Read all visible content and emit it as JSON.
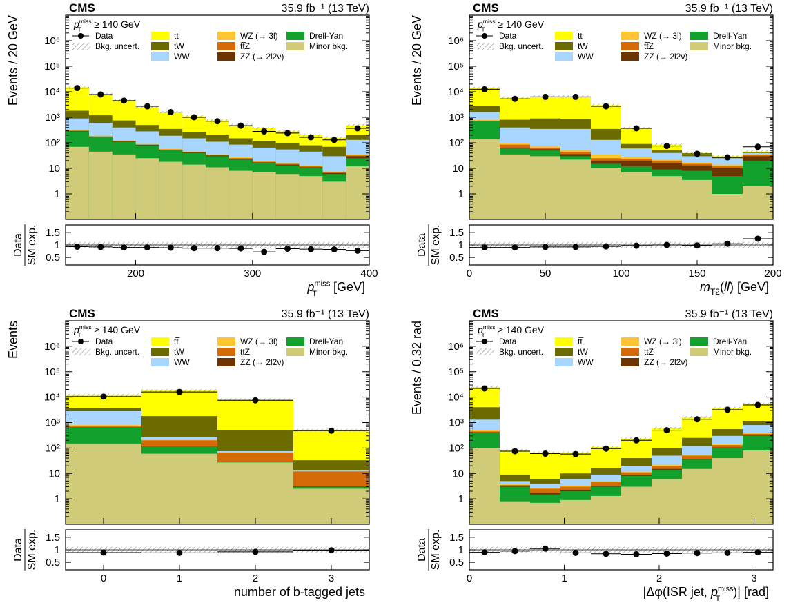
{
  "colors": {
    "ttbar": "#ffff00",
    "tW": "#6b6b00",
    "WW": "#a8d6ff",
    "WZ": "#ffc532",
    "ttZ": "#d56a08",
    "ZZ": "#6b3400",
    "DY": "#12a12c",
    "minor": "#cfcb79",
    "data": "#000000"
  },
  "chart_data": [
    {
      "type": "bar",
      "stacked": true,
      "scale_y": "log",
      "experiment": "CMS",
      "lumi": "35.9 fb⁻¹ (13 TeV)",
      "selection": "p_T^miss ≥ 140 GeV",
      "ylabel": "Events / 20 GeV",
      "xlabel": "p_T^miss [GeV]",
      "ratio_ylabel": "Data / SM exp.",
      "xlim": [
        140,
        400
      ],
      "ylim": [
        0.1,
        10000000
      ],
      "ratio_ylim": [
        0.2,
        1.8
      ],
      "x_ticks": [
        "200",
        "300",
        "400"
      ],
      "x_tick_values": [
        200,
        300,
        400
      ],
      "y_ticks": [
        "1",
        "10",
        "10²",
        "10³",
        "10⁴",
        "10⁵",
        "10⁶"
      ],
      "ratio_ticks": [
        "0.5",
        "1",
        "1.5"
      ],
      "bin_edges": [
        140,
        160,
        180,
        200,
        220,
        240,
        260,
        280,
        300,
        320,
        340,
        360,
        380,
        400
      ],
      "legend": [
        {
          "key": "data",
          "label": "Data",
          "kind": "marker"
        },
        {
          "key": "ttbar",
          "label": "tt̅",
          "kind": "box"
        },
        {
          "key": "WZ",
          "label": "WZ (→ 3l)",
          "kind": "box"
        },
        {
          "key": "DY",
          "label": "Drell-Yan",
          "kind": "box"
        },
        {
          "key": "unc",
          "label": "Bkg. uncert.",
          "kind": "hatch"
        },
        {
          "key": "tW",
          "label": "tW",
          "kind": "box"
        },
        {
          "key": "ttZ",
          "label": "tt̅Z",
          "kind": "box"
        },
        {
          "key": "minor",
          "label": "Minor bkg.",
          "kind": "box"
        },
        {
          "key": "WW",
          "label": "WW",
          "kind": "box"
        },
        {
          "key": "ZZ",
          "label": "ZZ (→ 2l2ν)",
          "kind": "box"
        }
      ],
      "stack_tops": {
        "minor": [
          70,
          45,
          35,
          25,
          18,
          14,
          11,
          8,
          7,
          6,
          5,
          3,
          12
        ],
        "DY": [
          280,
          170,
          110,
          80,
          50,
          40,
          30,
          22,
          16,
          13,
          10,
          6,
          25
        ],
        "ZZ": [
          290,
          175,
          115,
          83,
          53,
          42,
          32,
          24,
          17,
          14,
          11,
          6.5,
          30
        ],
        "ttZ": [
          300,
          180,
          118,
          86,
          55,
          44,
          33,
          25,
          18,
          15,
          12,
          7,
          32
        ],
        "WZ": [
          320,
          190,
          125,
          90,
          58,
          46,
          35,
          27,
          19,
          16,
          13,
          7.5,
          35
        ],
        "WW": [
          900,
          600,
          400,
          280,
          190,
          150,
          110,
          85,
          65,
          55,
          45,
          30,
          130
        ],
        "tW": [
          1800,
          1200,
          750,
          500,
          350,
          260,
          200,
          150,
          120,
          95,
          80,
          70,
          200
        ],
        "ttbar": [
          15000,
          8000,
          4500,
          2500,
          1600,
          1100,
          750,
          500,
          370,
          280,
          200,
          160,
          480
        ]
      },
      "data_points": [
        14000,
        7800,
        4500,
        2700,
        1600,
        1000,
        700,
        470,
        280,
        240,
        165,
        130,
        370
      ],
      "ratio_points": [
        0.93,
        0.92,
        0.9,
        0.9,
        0.89,
        0.87,
        0.87,
        0.86,
        0.72,
        0.85,
        0.83,
        0.82,
        0.77
      ]
    },
    {
      "type": "bar",
      "stacked": true,
      "scale_y": "log",
      "experiment": "CMS",
      "lumi": "35.9 fb⁻¹ (13 TeV)",
      "selection": "p_T^miss ≥ 140 GeV",
      "ylabel": "Events / 20 GeV",
      "xlabel": "m_T2(ll) [GeV]",
      "ratio_ylabel": "Data / SM exp.",
      "xlim": [
        0,
        200
      ],
      "ylim": [
        0.1,
        10000000
      ],
      "ratio_ylim": [
        0.2,
        1.8
      ],
      "x_ticks": [
        "0",
        "50",
        "100",
        "150",
        "200"
      ],
      "x_tick_values": [
        0,
        50,
        100,
        150,
        200
      ],
      "y_ticks": [
        "1",
        "10",
        "10²",
        "10³",
        "10⁴",
        "10⁵",
        "10⁶"
      ],
      "ratio_ticks": [
        "0.5",
        "1",
        "1.5"
      ],
      "bin_edges": [
        0,
        20,
        40,
        60,
        80,
        100,
        120,
        140,
        160,
        180,
        200
      ],
      "legend": [
        {
          "key": "data",
          "label": "Data",
          "kind": "marker"
        },
        {
          "key": "ttbar",
          "label": "tt̅",
          "kind": "box"
        },
        {
          "key": "WZ",
          "label": "WZ (→ 3l)",
          "kind": "box"
        },
        {
          "key": "DY",
          "label": "Drell-Yan",
          "kind": "box"
        },
        {
          "key": "unc",
          "label": "Bkg. uncert.",
          "kind": "hatch"
        },
        {
          "key": "tW",
          "label": "tW",
          "kind": "box"
        },
        {
          "key": "ttZ",
          "label": "tt̅Z",
          "kind": "box"
        },
        {
          "key": "minor",
          "label": "Minor bkg.",
          "kind": "box"
        },
        {
          "key": "WW",
          "label": "WW",
          "kind": "box"
        },
        {
          "key": "ZZ",
          "label": "ZZ (→ 2l2ν)",
          "kind": "box"
        }
      ],
      "stack_tops": {
        "minor": [
          140,
          35,
          30,
          22,
          10,
          7,
          5,
          3.5,
          1,
          2
        ],
        "DY": [
          700,
          60,
          50,
          30,
          15,
          12,
          9,
          8,
          5,
          20
        ],
        "ZZ": [
          720,
          65,
          56,
          36,
          20,
          20,
          16,
          13,
          10,
          30
        ],
        "ttZ": [
          740,
          85,
          65,
          45,
          25,
          24,
          20,
          15,
          12,
          34
        ],
        "WZ": [
          800,
          95,
          72,
          50,
          35,
          27,
          22,
          17,
          14,
          36
        ],
        "WW": [
          1600,
          400,
          350,
          350,
          130,
          60,
          40,
          30,
          25,
          40
        ],
        "tW": [
          2800,
          800,
          900,
          850,
          350,
          90,
          50,
          34,
          27,
          42
        ],
        "ttbar": [
          14000,
          5800,
          6700,
          6500,
          3000,
          380,
          85,
          40,
          30,
          45
        ]
      },
      "data_points": [
        12500,
        5300,
        6300,
        6300,
        2700,
        370,
        75,
        37,
        27,
        70
      ],
      "ratio_points": [
        0.9,
        0.9,
        0.92,
        0.92,
        0.94,
        0.97,
        1.0,
        0.98,
        1.05,
        1.25
      ]
    },
    {
      "type": "bar",
      "stacked": true,
      "scale_y": "log",
      "experiment": "CMS",
      "lumi": "35.9 fb⁻¹ (13 TeV)",
      "selection": "p_T^miss ≥ 140 GeV",
      "ylabel": "Events",
      "xlabel": "number of b-tagged jets",
      "ratio_ylabel": "Data / SM exp.",
      "xlim": [
        -0.5,
        3.5
      ],
      "ylim": [
        0.1,
        10000000
      ],
      "ratio_ylim": [
        0.2,
        1.8
      ],
      "x_ticks": [
        "0",
        "1",
        "2",
        "3"
      ],
      "x_tick_values": [
        0,
        1,
        2,
        3
      ],
      "y_ticks": [
        "1",
        "10",
        "10²",
        "10³",
        "10⁴",
        "10⁵",
        "10⁶"
      ],
      "ratio_ticks": [
        "0.5",
        "1",
        "1.5"
      ],
      "bin_edges": [
        -0.5,
        0.5,
        1.5,
        2.5,
        3.5
      ],
      "legend": [
        {
          "key": "data",
          "label": "Data",
          "kind": "marker"
        },
        {
          "key": "ttbar",
          "label": "tt̅",
          "kind": "box"
        },
        {
          "key": "WZ",
          "label": "WZ (→ 3l)",
          "kind": "box"
        },
        {
          "key": "DY",
          "label": "Drell-Yan",
          "kind": "box"
        },
        {
          "key": "unc",
          "label": "Bkg. uncert.",
          "kind": "hatch"
        },
        {
          "key": "tW",
          "label": "tW",
          "kind": "box"
        },
        {
          "key": "ttZ",
          "label": "tt̅Z",
          "kind": "box"
        },
        {
          "key": "minor",
          "label": "Minor bkg.",
          "kind": "box"
        },
        {
          "key": "WW",
          "label": "WW",
          "kind": "box"
        },
        {
          "key": "ZZ",
          "label": "ZZ (→ 2l2ν)",
          "kind": "box"
        }
      ],
      "stack_tops": {
        "minor": [
          150,
          60,
          27,
          2.5
        ],
        "DY": [
          650,
          110,
          28,
          3
        ],
        "ZZ": [
          660,
          112,
          29,
          3.1
        ],
        "ttZ": [
          700,
          200,
          65,
          12
        ],
        "WZ": [
          800,
          210,
          70,
          12.5
        ],
        "WW": [
          2800,
          270,
          75,
          13
        ],
        "tW": [
          3800,
          1800,
          500,
          33
        ],
        "ttbar": [
          12000,
          18000,
          8000,
          500
        ]
      },
      "data_points": [
        10500,
        16000,
        7500,
        480
      ],
      "ratio_points": [
        0.89,
        0.88,
        0.92,
        0.98
      ]
    },
    {
      "type": "bar",
      "stacked": true,
      "scale_y": "log",
      "experiment": "CMS",
      "lumi": "35.9 fb⁻¹ (13 TeV)",
      "selection": "p_T^miss ≥ 140 GeV",
      "ylabel": "Events / 0.32 rad",
      "xlabel": "|Δφ(ISR jet, p_T^miss)| [rad]",
      "ratio_ylabel": "Data / SM exp.",
      "xlim": [
        0,
        3.2
      ],
      "ylim": [
        0.1,
        10000000
      ],
      "ratio_ylim": [
        0.2,
        1.8
      ],
      "x_ticks": [
        "0",
        "1",
        "2",
        "3"
      ],
      "x_tick_values": [
        0,
        1,
        2,
        3
      ],
      "y_ticks": [
        "1",
        "10",
        "10²",
        "10³",
        "10⁴",
        "10⁵",
        "10⁶"
      ],
      "ratio_ticks": [
        "0.5",
        "1",
        "1.5"
      ],
      "bin_edges": [
        0,
        0.32,
        0.64,
        0.96,
        1.28,
        1.6,
        1.92,
        2.24,
        2.56,
        2.88,
        3.2
      ],
      "legend": [
        {
          "key": "data",
          "label": "Data",
          "kind": "marker"
        },
        {
          "key": "ttbar",
          "label": "tt̅",
          "kind": "box"
        },
        {
          "key": "WZ",
          "label": "WZ (→ 3l)",
          "kind": "box"
        },
        {
          "key": "DY",
          "label": "Drell-Yan",
          "kind": "box"
        },
        {
          "key": "unc",
          "label": "Bkg. uncert.",
          "kind": "hatch"
        },
        {
          "key": "tW",
          "label": "tW",
          "kind": "box"
        },
        {
          "key": "ttZ",
          "label": "tt̅Z",
          "kind": "box"
        },
        {
          "key": "minor",
          "label": "Minor bkg.",
          "kind": "box"
        },
        {
          "key": "WW",
          "label": "WW",
          "kind": "box"
        },
        {
          "key": "ZZ",
          "label": "ZZ (→ 2l2ν)",
          "kind": "box"
        }
      ],
      "stack_tops": {
        "minor": [
          100,
          0.8,
          0.7,
          0.9,
          1.3,
          3,
          6,
          15,
          40,
          80
        ],
        "DY": [
          400,
          3,
          1.5,
          2,
          3,
          8,
          14,
          35,
          100,
          300
        ],
        "ZZ": [
          410,
          3.2,
          1.7,
          2.2,
          3.3,
          8.6,
          15,
          37,
          105,
          310
        ],
        "ttZ": [
          450,
          3.5,
          2.5,
          3,
          4.5,
          11,
          20,
          50,
          130,
          360
        ],
        "WZ": [
          500,
          3.7,
          2.7,
          3.3,
          5,
          12,
          22,
          55,
          140,
          380
        ],
        "WW": [
          1300,
          5,
          4,
          6,
          9,
          20,
          50,
          120,
          300,
          800
        ],
        "tW": [
          4000,
          9,
          6,
          10,
          16,
          40,
          100,
          250,
          550,
          1100
        ],
        "ttbar": [
          25000,
          80,
          65,
          65,
          110,
          230,
          600,
          1600,
          3700,
          5400
        ]
      },
      "data_points": [
        22000,
        75,
        60,
        58,
        95,
        200,
        500,
        1350,
        3200,
        4900
      ],
      "ratio_points": [
        0.9,
        0.95,
        1.05,
        0.88,
        0.84,
        0.82,
        0.85,
        0.87,
        0.88,
        0.9
      ]
    }
  ]
}
